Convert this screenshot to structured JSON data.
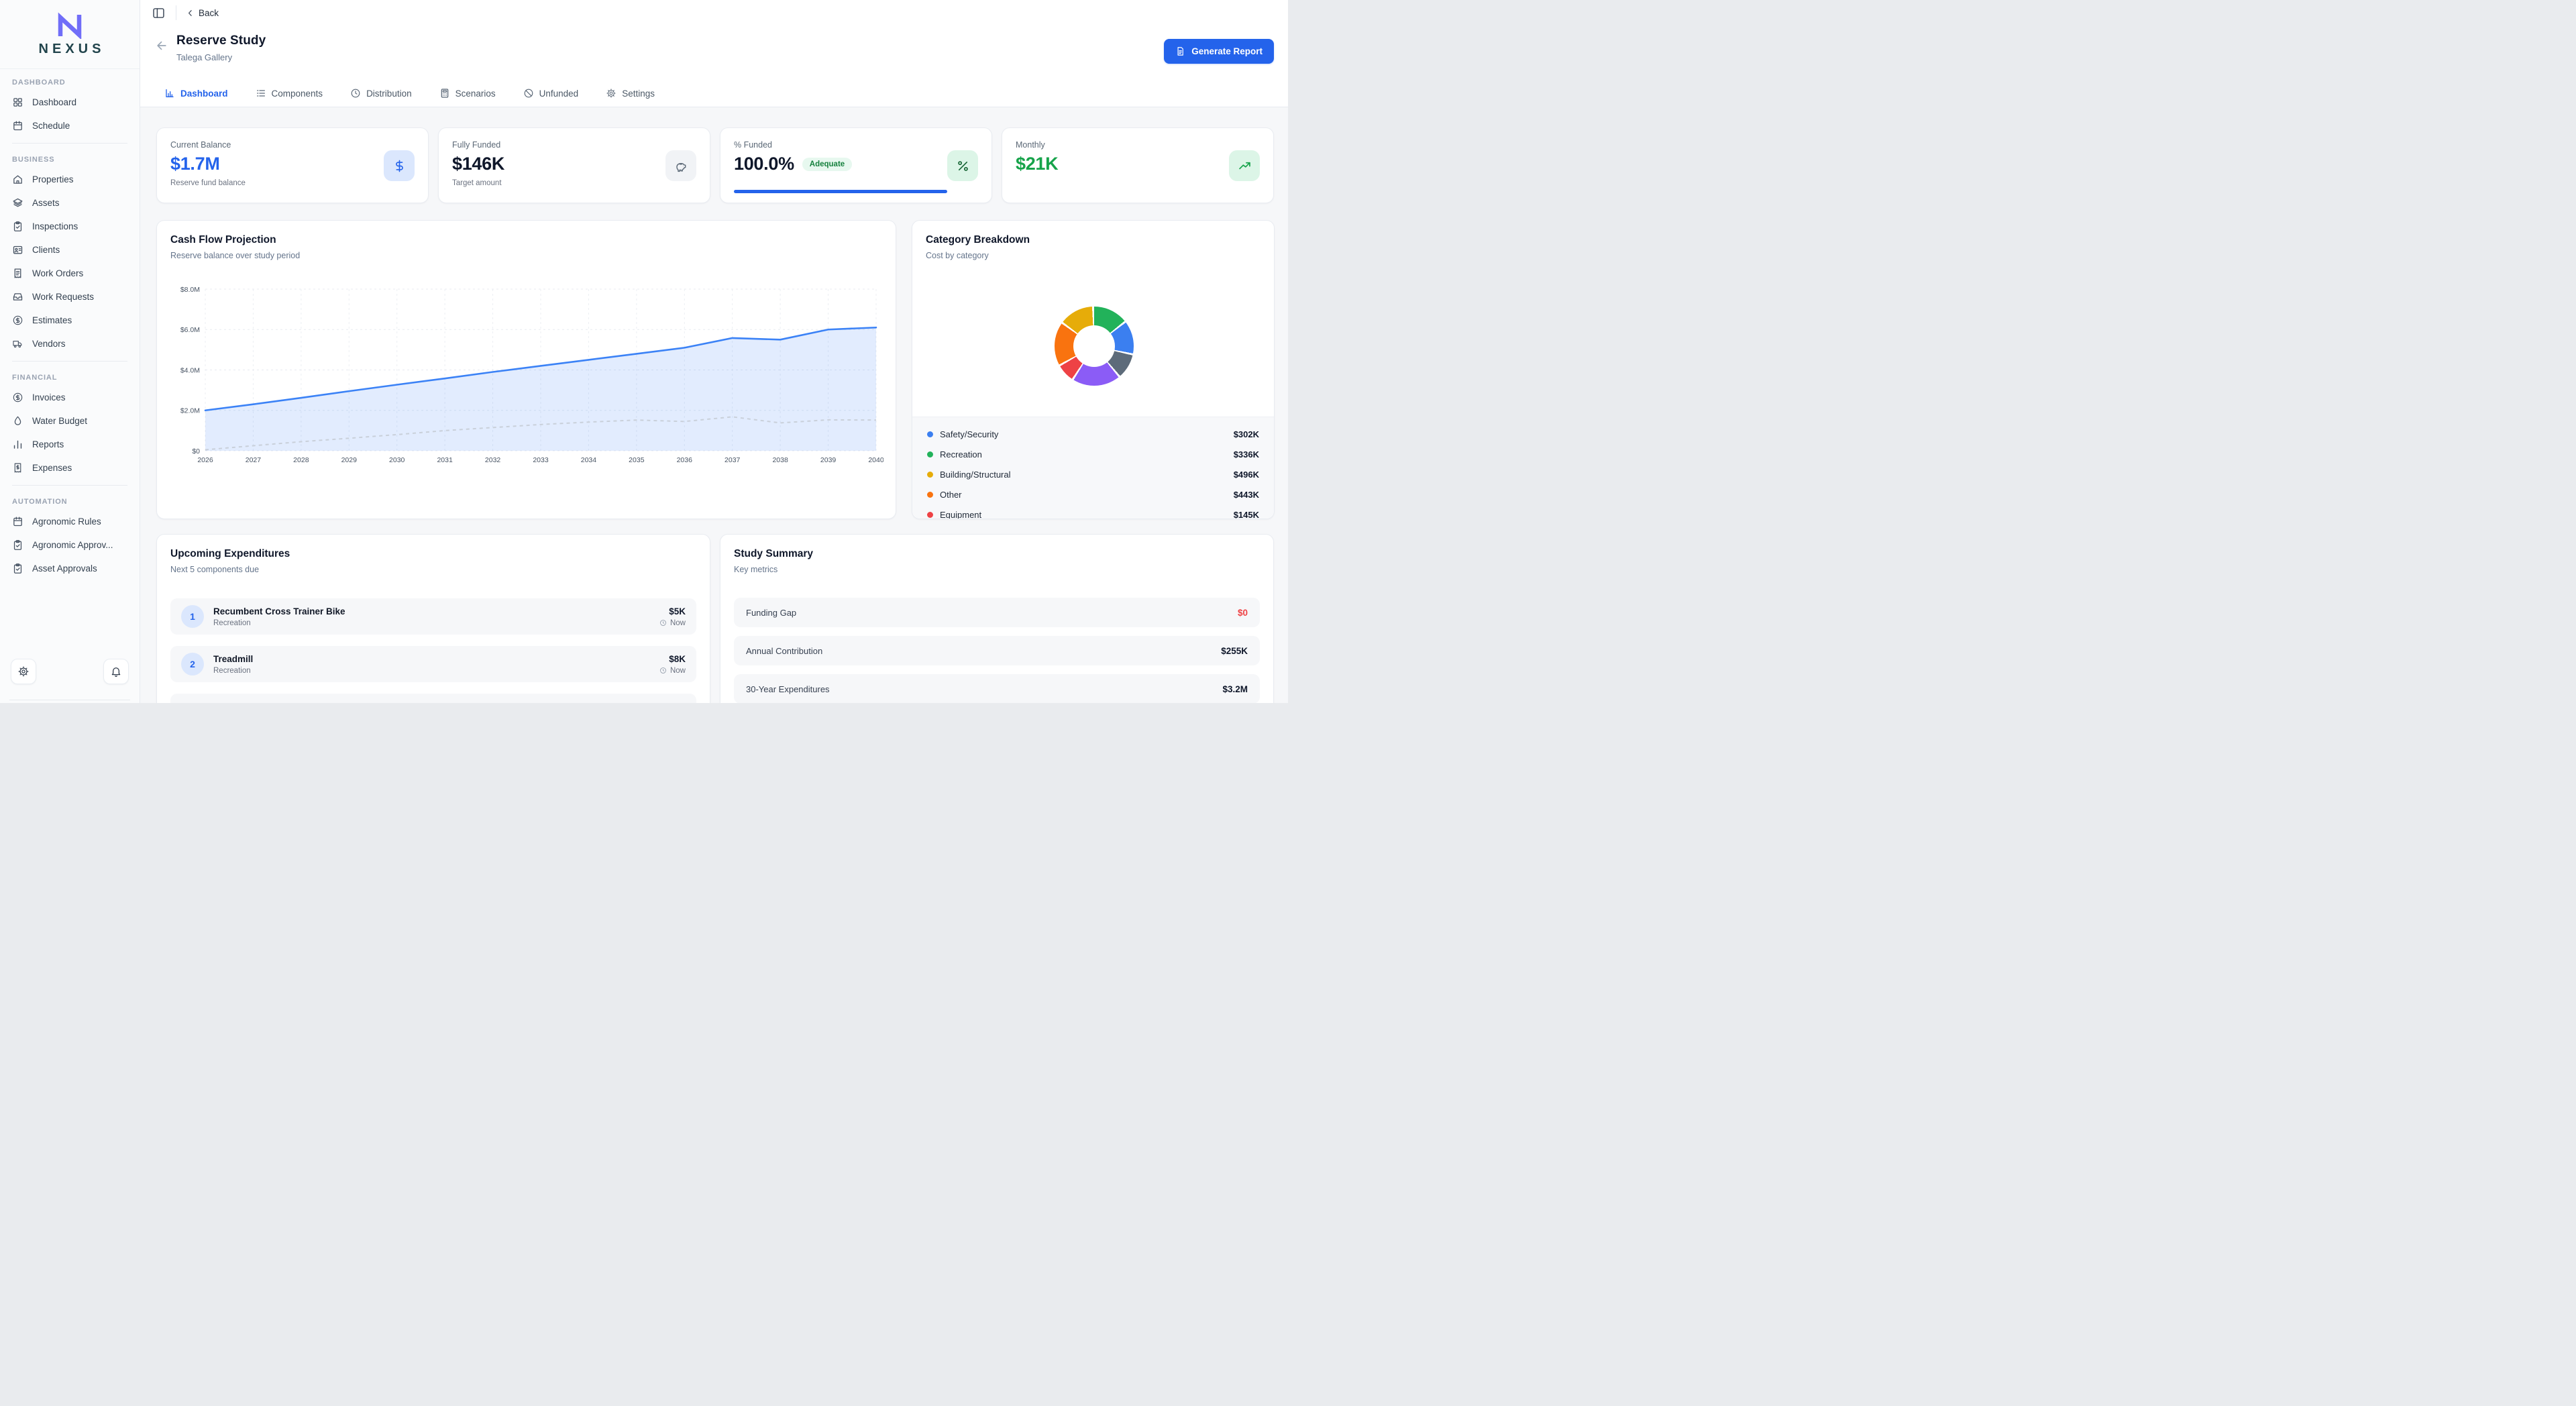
{
  "brand": {
    "name": "NEXUS"
  },
  "sidebar": {
    "sections": [
      {
        "label": "DASHBOARD",
        "items": [
          {
            "label": "Dashboard",
            "icon": "grid-icon"
          },
          {
            "label": "Schedule",
            "icon": "calendar-icon"
          }
        ]
      },
      {
        "label": "BUSINESS",
        "items": [
          {
            "label": "Properties",
            "icon": "home-icon"
          },
          {
            "label": "Assets",
            "icon": "layers-icon"
          },
          {
            "label": "Inspections",
            "icon": "clipboard-check-icon"
          },
          {
            "label": "Clients",
            "icon": "id-card-icon"
          },
          {
            "label": "Work Orders",
            "icon": "receipt-icon"
          },
          {
            "label": "Work Requests",
            "icon": "inbox-icon"
          },
          {
            "label": "Estimates",
            "icon": "dollar-circle-icon"
          },
          {
            "label": "Vendors",
            "icon": "truck-icon"
          }
        ]
      },
      {
        "label": "FINANCIAL",
        "items": [
          {
            "label": "Invoices",
            "icon": "dollar-circle-icon"
          },
          {
            "label": "Water Budget",
            "icon": "droplet-icon"
          },
          {
            "label": "Reports",
            "icon": "bar-chart-icon"
          },
          {
            "label": "Expenses",
            "icon": "receipt-dollar-icon"
          }
        ]
      },
      {
        "label": "AUTOMATION",
        "items": [
          {
            "label": "Agronomic Rules",
            "icon": "calendar-icon"
          },
          {
            "label": "Agronomic Approv...",
            "icon": "clipboard-check-icon"
          },
          {
            "label": "Asset Approvals",
            "icon": "clipboard-check-icon"
          }
        ]
      }
    ]
  },
  "header": {
    "back_label": "Back",
    "title": "Reserve Study",
    "subtitle": "Talega Gallery",
    "generate_report_label": "Generate Report"
  },
  "tabs": [
    {
      "label": "Dashboard",
      "icon": "chart-column-icon",
      "active": true
    },
    {
      "label": "Components",
      "icon": "list-icon",
      "active": false
    },
    {
      "label": "Distribution",
      "icon": "clock-icon",
      "active": false
    },
    {
      "label": "Scenarios",
      "icon": "calculator-icon",
      "active": false
    },
    {
      "label": "Unfunded",
      "icon": "slash-circle-icon",
      "active": false
    },
    {
      "label": "Settings",
      "icon": "gear-icon",
      "active": false
    }
  ],
  "stats": [
    {
      "label": "Current Balance",
      "value": "$1.7M",
      "sub": "Reserve fund balance",
      "value_color": "#2463eb",
      "icon": "dollar-icon",
      "icon_bg": "#dbe7fd",
      "icon_color": "#2463eb"
    },
    {
      "label": "Fully Funded",
      "value": "$146K",
      "sub": "Target amount",
      "value_color": "#0f172a",
      "icon": "piggy-bank-icon",
      "icon_bg": "#f1f3f6",
      "icon_color": "#5b6876"
    },
    {
      "label": "% Funded",
      "value": "100.0%",
      "badge": "Adequate",
      "value_color": "#0f172a",
      "icon": "percent-icon",
      "icon_bg": "#dcf5e7",
      "icon_color": "#166534",
      "progress_pct": 100
    },
    {
      "label": "Monthly",
      "value": "$21K",
      "value_color": "#16a34a",
      "icon": "trend-up-icon",
      "icon_bg": "#dcf5e7",
      "icon_color": "#16a34a"
    }
  ],
  "cash_flow": {
    "title": "Cash Flow Projection",
    "subtitle": "Reserve balance over study period"
  },
  "category": {
    "title": "Category Breakdown",
    "subtitle": "Cost by category",
    "legend": [
      {
        "label": "Safety/Security",
        "value": "$302K",
        "color": "#3b7ff0"
      },
      {
        "label": "Recreation",
        "value": "$336K",
        "color": "#22b25a"
      },
      {
        "label": "Building/Structural",
        "value": "$496K",
        "color": "#e6ac09"
      },
      {
        "label": "Other",
        "value": "$443K",
        "color": "#f9730f"
      },
      {
        "label": "Equipment",
        "value": "$145K",
        "color": "#ee4245"
      }
    ]
  },
  "upcoming": {
    "title": "Upcoming Expenditures",
    "subtitle": "Next 5 components due",
    "items": [
      {
        "rank": "1",
        "name": "Recumbent Cross Trainer Bike",
        "category": "Recreation",
        "amount": "$5K",
        "due": "Now"
      },
      {
        "rank": "2",
        "name": "Treadmill",
        "category": "Recreation",
        "amount": "$8K",
        "due": "Now"
      }
    ]
  },
  "summary": {
    "title": "Study Summary",
    "subtitle": "Key metrics",
    "rows": [
      {
        "label": "Funding Gap",
        "value": "$0",
        "value_color": "#ee4245"
      },
      {
        "label": "Annual Contribution",
        "value": "$255K",
        "value_color": "#0f172a"
      },
      {
        "label": "30-Year Expenditures",
        "value": "$3.2M",
        "value_color": "#0f172a"
      }
    ]
  },
  "chart_data": [
    {
      "type": "area",
      "title": "Cash Flow Projection",
      "x": [
        2026,
        2027,
        2028,
        2029,
        2030,
        2031,
        2032,
        2033,
        2034,
        2035,
        2036,
        2037,
        2038,
        2039,
        2040
      ],
      "series": [
        {
          "name": "reserve_balance",
          "style": "solid",
          "color": "#3b82f6",
          "fill": "rgba(59,130,246,0.15)",
          "values": [
            2.0,
            2.3,
            2.62,
            2.95,
            3.27,
            3.58,
            3.9,
            4.2,
            4.5,
            4.8,
            5.1,
            5.58,
            5.5,
            6.0,
            6.1
          ]
        },
        {
          "name": "dashed_reference",
          "style": "dashed",
          "color": "#c9d0da",
          "fill": "none",
          "values": [
            0.05,
            0.25,
            0.45,
            0.62,
            0.8,
            1.0,
            1.15,
            1.3,
            1.42,
            1.52,
            1.45,
            1.68,
            1.38,
            1.53,
            1.52
          ]
        }
      ],
      "ylim": [
        0,
        8
      ],
      "yticks": [
        {
          "v": 8,
          "label": "$8.0M"
        },
        {
          "v": 6,
          "label": "$6.0M"
        },
        {
          "v": 4,
          "label": "$4.0M"
        },
        {
          "v": 2,
          "label": "$2.0M"
        },
        {
          "v": 0,
          "label": "$0"
        }
      ],
      "grid": true,
      "units": "millions USD"
    },
    {
      "type": "pie",
      "title": "Category Breakdown",
      "donut": true,
      "slices": [
        {
          "label": "Recreation",
          "color": "#22b25a",
          "weight_deg": 50
        },
        {
          "label": "Safety/Security",
          "color": "#3b7ff0",
          "weight_deg": 47
        },
        {
          "label": "",
          "color": "#5d6b7a",
          "weight_deg": 35
        },
        {
          "label": "",
          "color": "#8b5cf6",
          "weight_deg": 69
        },
        {
          "label": "Equipment",
          "color": "#ee4245",
          "weight_deg": 25
        },
        {
          "label": "Other",
          "color": "#f9730f",
          "weight_deg": 62
        },
        {
          "label": "Building/Structural",
          "color": "#e6ac09",
          "weight_deg": 49
        }
      ],
      "legend_values": {
        "Safety/Security": "$302K",
        "Recreation": "$336K",
        "Building/Structural": "$496K",
        "Other": "$443K",
        "Equipment": "$145K"
      }
    }
  ]
}
